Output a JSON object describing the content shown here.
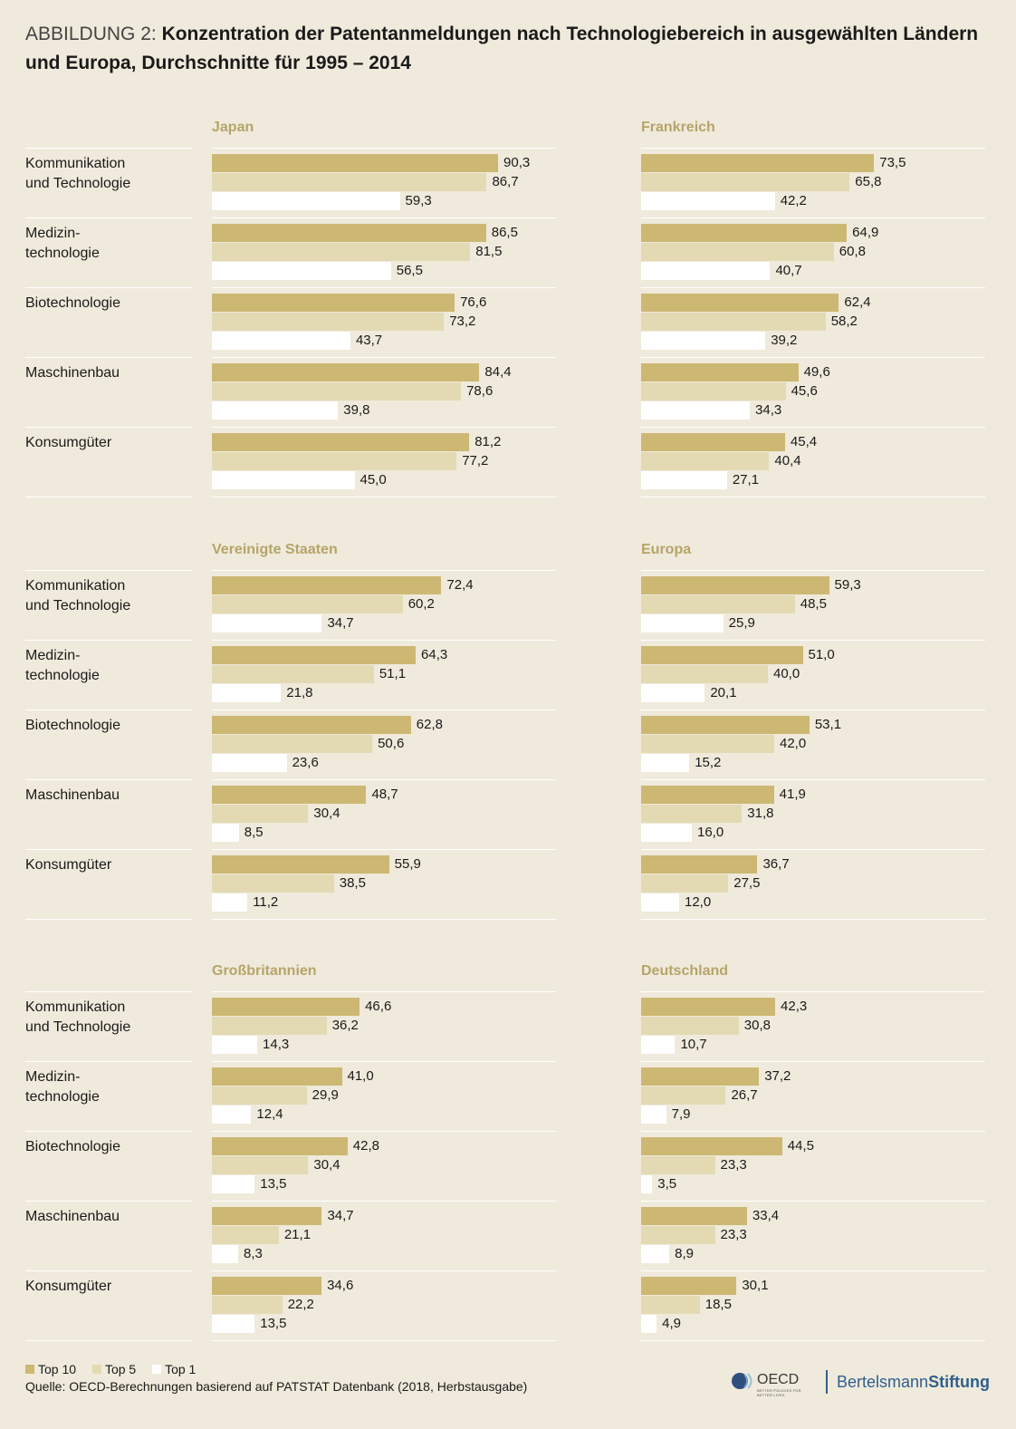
{
  "title": {
    "prefix": "ABBILDUNG 2: ",
    "main": "Konzentration der Patentanmeldungen nach Technologiebereich in ausgewählten Ländern und Europa, Durchschnitte für 1995 – 2014"
  },
  "categories": [
    "Kommunikation\nund Technologie",
    "Medizin-\ntechnologie",
    "Biotechnologie",
    "Maschinenbau",
    "Konsumgüter"
  ],
  "legend": {
    "top10": "Top 10",
    "top5": "Top 5",
    "top1": "Top 1"
  },
  "source": "Quelle: OECD-Berechnungen basierend auf PATSTAT Datenbank (2018, Herbstausgabe)",
  "logos": {
    "oecd": "OECD",
    "oecd_tagline": "BETTER POLICIES FOR BETTER LIVES",
    "bertelsmann_regular": "Bertelsmann",
    "bertelsmann_bold": "Stiftung"
  },
  "colors": {
    "top10": "#cdb873",
    "top5": "#e3dab4",
    "top1": "#ffffff",
    "panel_title": "#b7a46a",
    "background": "#efeadb"
  },
  "chart_data": {
    "type": "bar",
    "orientation": "horizontal",
    "xlim": [
      0,
      100
    ],
    "series_names": [
      "Top 10",
      "Top 5",
      "Top 1"
    ],
    "panels": [
      {
        "name": "Japan",
        "values": [
          [
            90.3,
            86.7,
            59.3
          ],
          [
            86.5,
            81.5,
            56.5
          ],
          [
            76.6,
            73.2,
            43.7
          ],
          [
            84.4,
            78.6,
            39.8
          ],
          [
            81.2,
            77.2,
            45.0
          ]
        ]
      },
      {
        "name": "Frankreich",
        "values": [
          [
            73.5,
            65.8,
            42.2
          ],
          [
            64.9,
            60.8,
            40.7
          ],
          [
            62.4,
            58.2,
            39.2
          ],
          [
            49.6,
            45.6,
            34.3
          ],
          [
            45.4,
            40.4,
            27.1
          ]
        ]
      },
      {
        "name": "Vereinigte Staaten",
        "values": [
          [
            72.4,
            60.2,
            34.7
          ],
          [
            64.3,
            51.1,
            21.8
          ],
          [
            62.8,
            50.6,
            23.6
          ],
          [
            48.7,
            30.4,
            8.5
          ],
          [
            55.9,
            38.5,
            11.2
          ]
        ]
      },
      {
        "name": "Europa",
        "values": [
          [
            59.3,
            48.5,
            25.9
          ],
          [
            51.0,
            40.0,
            20.1
          ],
          [
            53.1,
            42.0,
            15.2
          ],
          [
            41.9,
            31.8,
            16.0
          ],
          [
            36.7,
            27.5,
            12.0
          ]
        ]
      },
      {
        "name": "Großbritannien",
        "values": [
          [
            46.6,
            36.2,
            14.3
          ],
          [
            41.0,
            29.9,
            12.4
          ],
          [
            42.8,
            30.4,
            13.5
          ],
          [
            34.7,
            21.1,
            8.3
          ],
          [
            34.6,
            22.2,
            13.5
          ]
        ]
      },
      {
        "name": "Deutschland",
        "values": [
          [
            42.3,
            30.8,
            10.7
          ],
          [
            37.2,
            26.7,
            7.9
          ],
          [
            44.5,
            23.3,
            3.5
          ],
          [
            33.4,
            23.3,
            8.9
          ],
          [
            30.1,
            18.5,
            4.9
          ]
        ]
      }
    ]
  }
}
